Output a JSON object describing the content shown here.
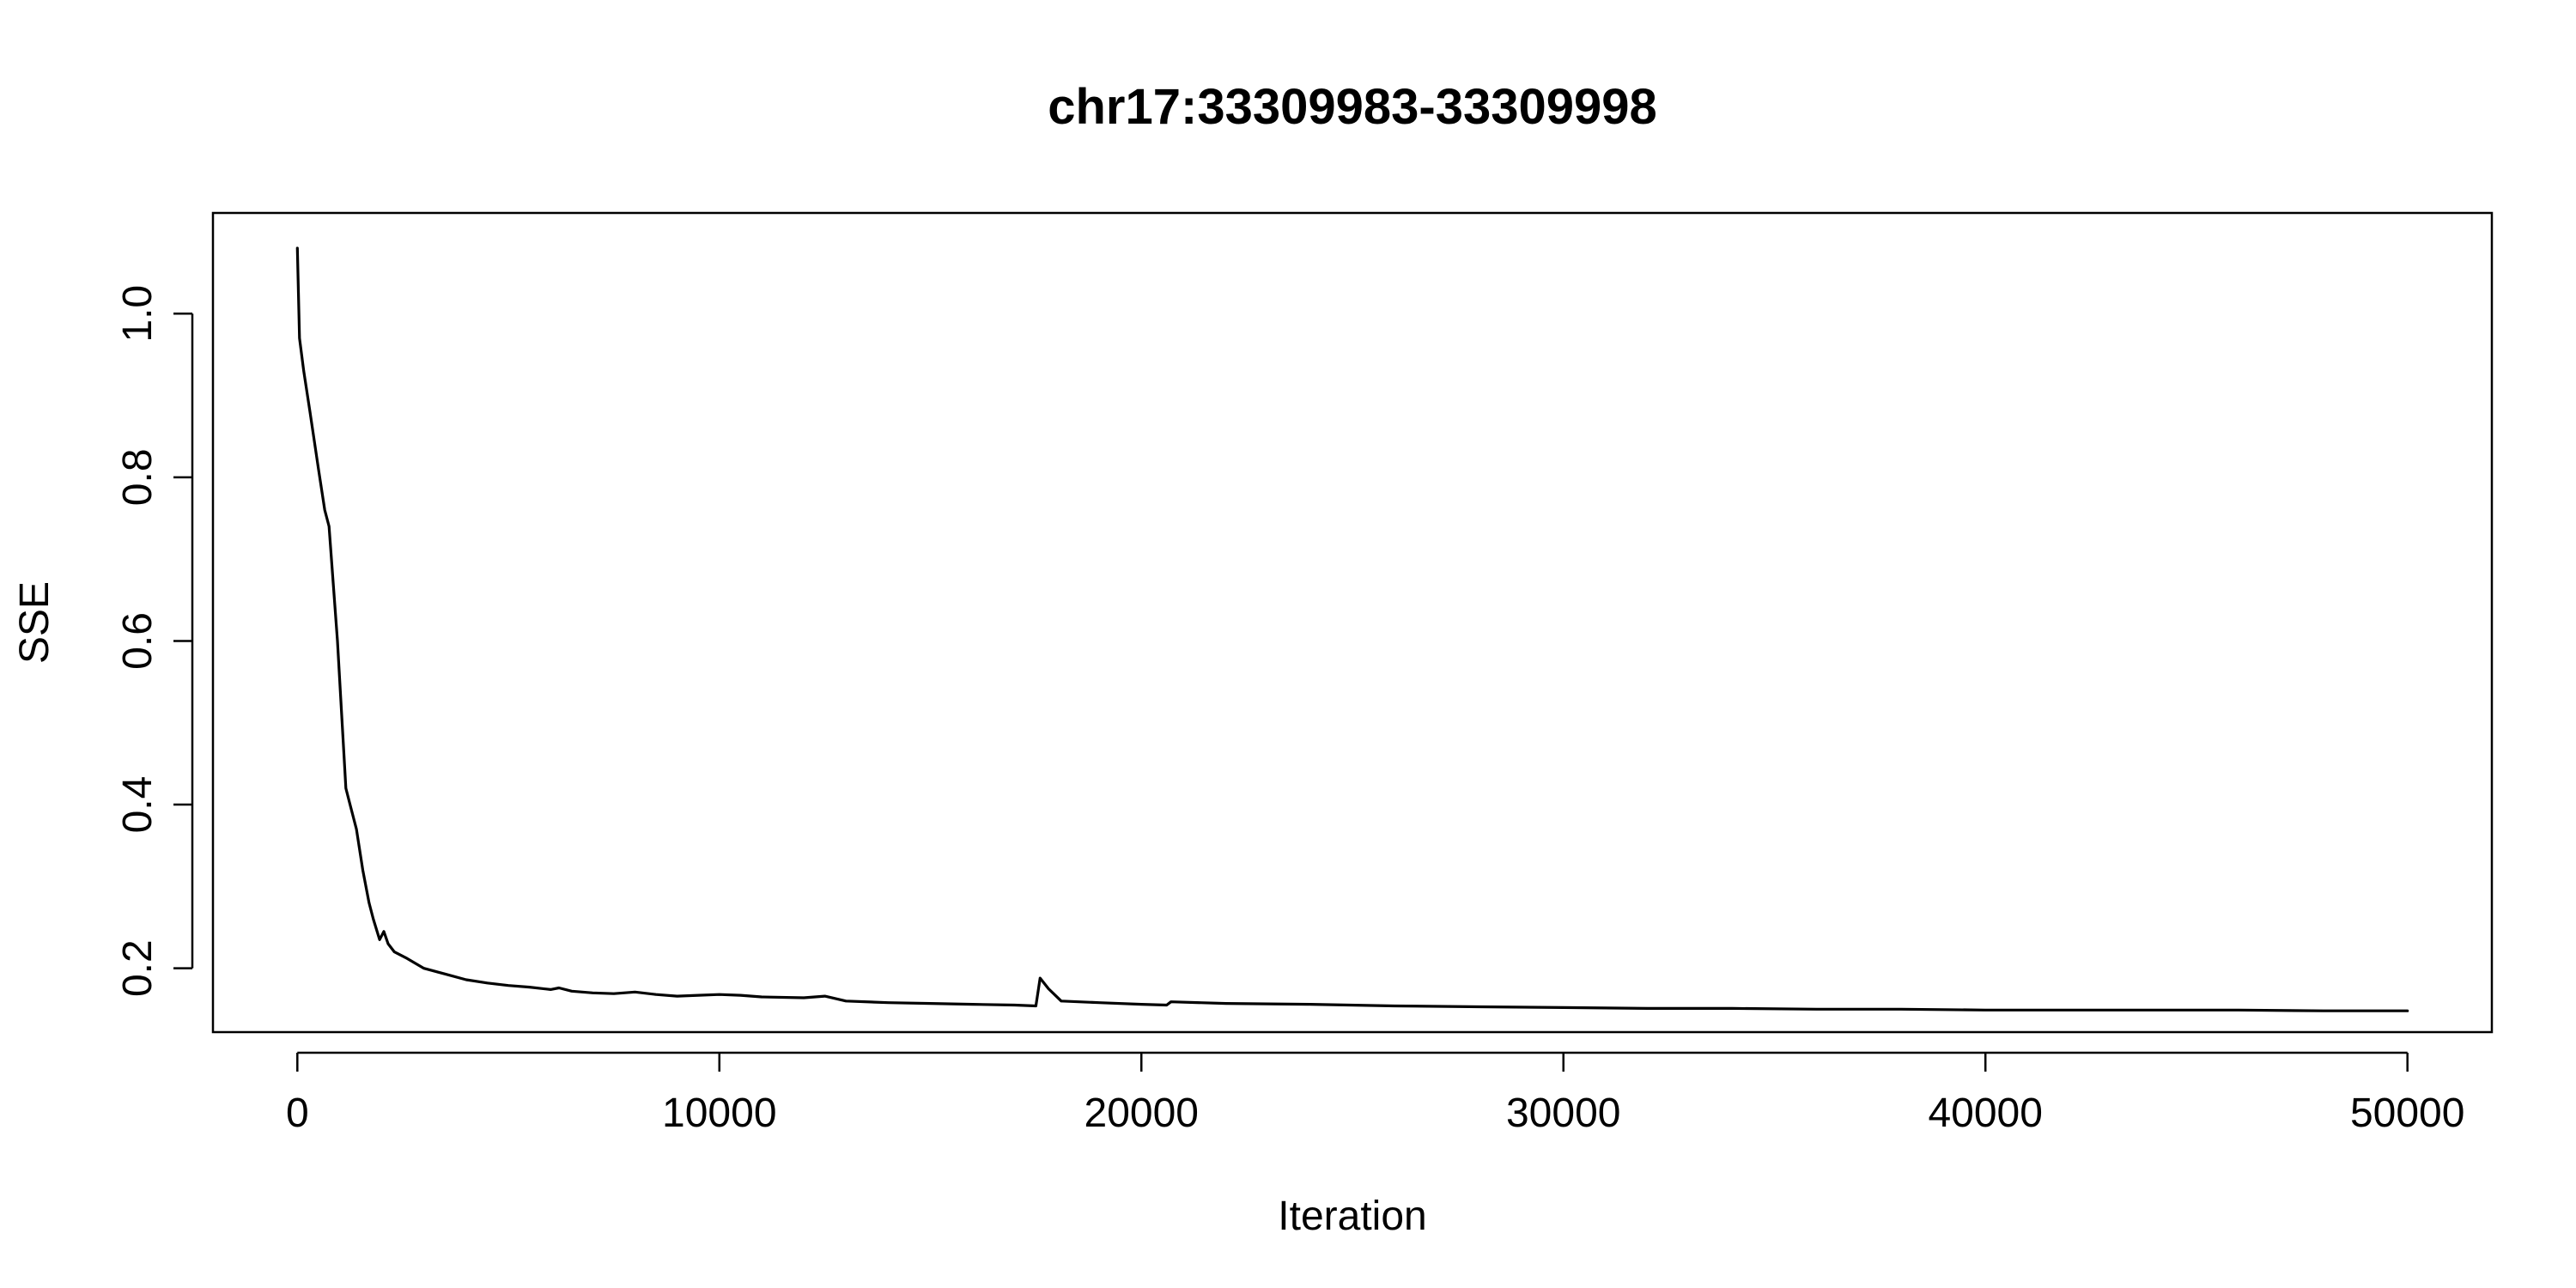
{
  "chart_data": {
    "type": "line",
    "title": "chr17:33309983-33309998",
    "xlabel": "Iteration",
    "ylabel": "SSE",
    "xlim": [
      -2000,
      52000
    ],
    "ylim": [
      0.122,
      1.123
    ],
    "x_ticks": [
      0,
      10000,
      20000,
      30000,
      40000,
      50000
    ],
    "x_tick_labels": [
      "0",
      "10000",
      "20000",
      "30000",
      "40000",
      "50000"
    ],
    "y_ticks": [
      0.2,
      0.4,
      0.6,
      0.8,
      1.0
    ],
    "y_tick_labels": [
      "0.2",
      "0.4",
      "0.6",
      "0.8",
      "1.0"
    ],
    "grid": false,
    "legend": "none",
    "line_color": "#000000",
    "series": [
      {
        "points": [
          [
            0,
            1.08
          ],
          [
            50,
            0.97
          ],
          [
            150,
            0.93
          ],
          [
            300,
            0.88
          ],
          [
            500,
            0.81
          ],
          [
            650,
            0.76
          ],
          [
            750,
            0.74
          ],
          [
            850,
            0.67
          ],
          [
            950,
            0.6
          ],
          [
            1050,
            0.51
          ],
          [
            1150,
            0.42
          ],
          [
            1250,
            0.4
          ],
          [
            1400,
            0.37
          ],
          [
            1550,
            0.32
          ],
          [
            1700,
            0.28
          ],
          [
            1800,
            0.26
          ],
          [
            1950,
            0.235
          ],
          [
            2050,
            0.245
          ],
          [
            2150,
            0.23
          ],
          [
            2300,
            0.22
          ],
          [
            2600,
            0.212
          ],
          [
            3000,
            0.2
          ],
          [
            3500,
            0.193
          ],
          [
            4000,
            0.186
          ],
          [
            4500,
            0.182
          ],
          [
            5000,
            0.179
          ],
          [
            5500,
            0.177
          ],
          [
            6000,
            0.174
          ],
          [
            6200,
            0.176
          ],
          [
            6500,
            0.172
          ],
          [
            7000,
            0.17
          ],
          [
            7500,
            0.169
          ],
          [
            8000,
            0.171
          ],
          [
            8500,
            0.168
          ],
          [
            9000,
            0.166
          ],
          [
            9500,
            0.167
          ],
          [
            10000,
            0.168
          ],
          [
            10500,
            0.167
          ],
          [
            11000,
            0.165
          ],
          [
            12000,
            0.164
          ],
          [
            12500,
            0.166
          ],
          [
            13000,
            0.16
          ],
          [
            14000,
            0.158
          ],
          [
            15000,
            0.157
          ],
          [
            16000,
            0.156
          ],
          [
            17000,
            0.155
          ],
          [
            17500,
            0.154
          ],
          [
            17600,
            0.188
          ],
          [
            17800,
            0.175
          ],
          [
            18100,
            0.16
          ],
          [
            19000,
            0.158
          ],
          [
            20000,
            0.156
          ],
          [
            20600,
            0.155
          ],
          [
            20700,
            0.159
          ],
          [
            22000,
            0.157
          ],
          [
            24000,
            0.156
          ],
          [
            26000,
            0.154
          ],
          [
            28000,
            0.153
          ],
          [
            30000,
            0.152
          ],
          [
            32000,
            0.151
          ],
          [
            34000,
            0.151
          ],
          [
            36000,
            0.15
          ],
          [
            38000,
            0.15
          ],
          [
            40000,
            0.149
          ],
          [
            42000,
            0.149
          ],
          [
            44000,
            0.149
          ],
          [
            46000,
            0.149
          ],
          [
            48000,
            0.148
          ],
          [
            50000,
            0.148
          ]
        ]
      }
    ]
  }
}
